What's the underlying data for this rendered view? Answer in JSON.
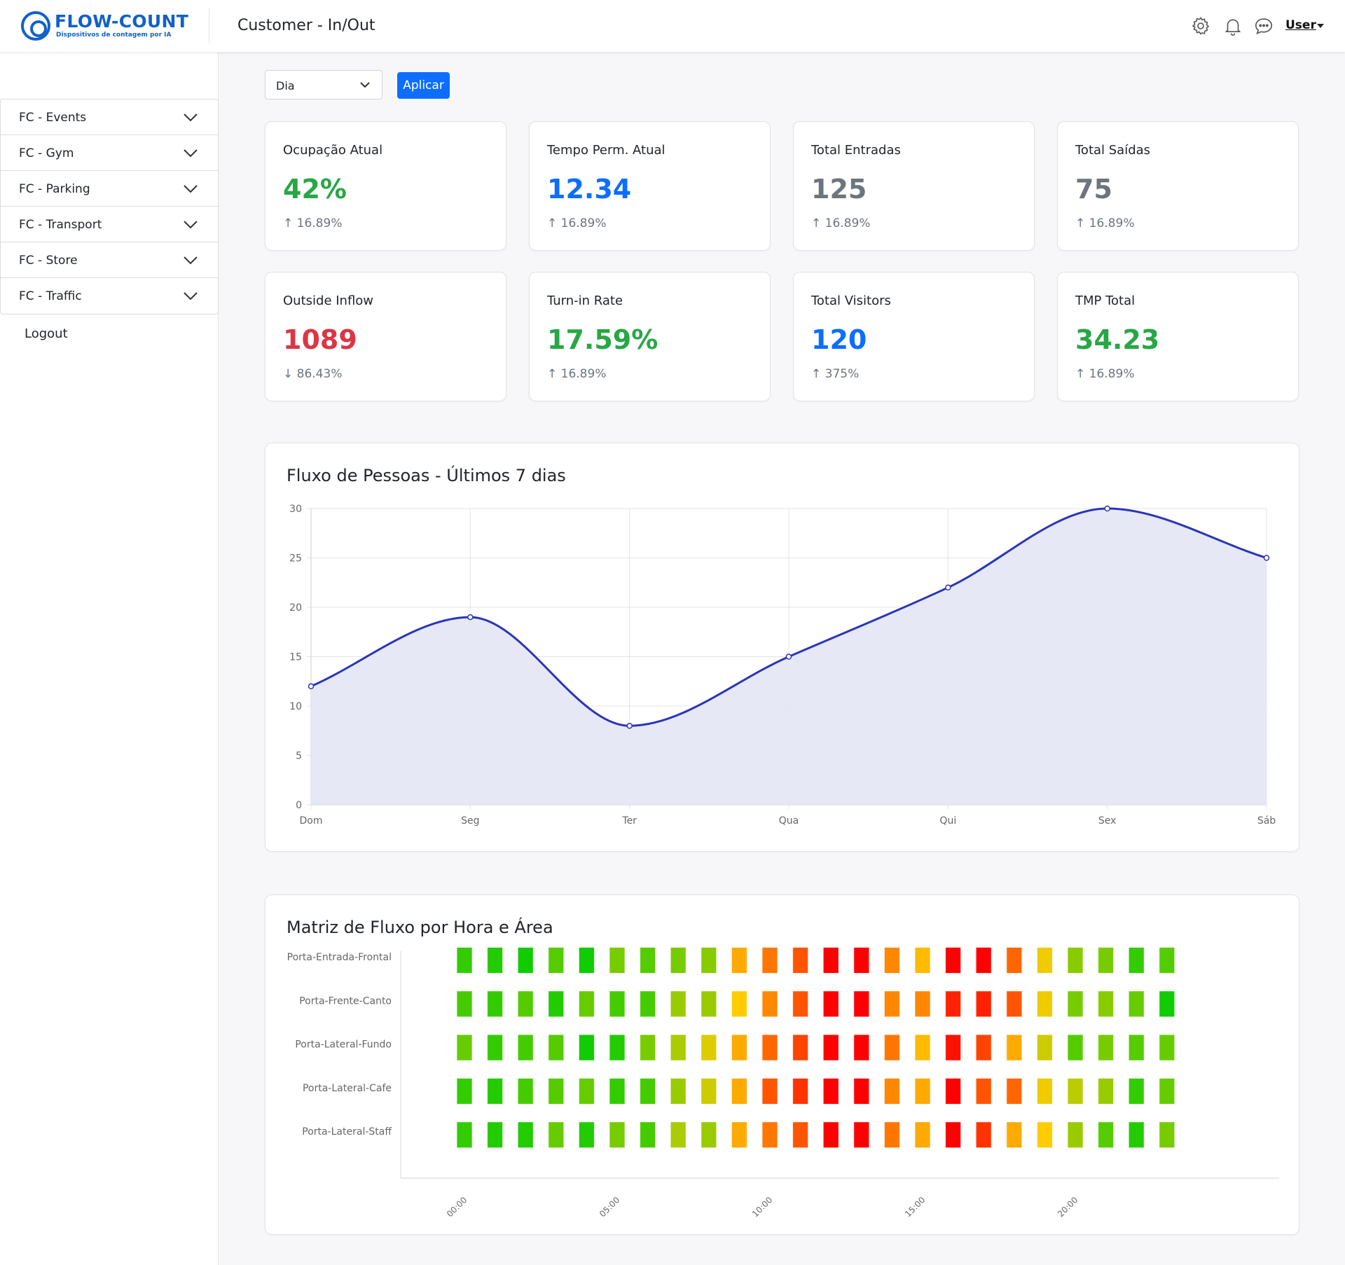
{
  "header": {
    "logo_name": "FLOW-COUNT",
    "logo_tagline": "Dispositivos de contagem por IA",
    "title": "Customer - In/Out",
    "icons": [
      "gear-icon",
      "bell-icon",
      "chat-icon"
    ],
    "user_label": "User"
  },
  "sidebar": {
    "items": [
      {
        "label": "FC - Events"
      },
      {
        "label": "FC - Gym"
      },
      {
        "label": "FC - Parking"
      },
      {
        "label": "FC - Transport"
      },
      {
        "label": "FC - Store"
      },
      {
        "label": "FC - Traffic"
      }
    ],
    "logout_label": "Logout"
  },
  "filter": {
    "period_value": "Dia",
    "apply_label": "Aplicar"
  },
  "colors": {
    "green": "#28a745",
    "blue": "#0d6efd",
    "gray": "#6c757d",
    "red": "#dc3545",
    "line": "#2936b5",
    "fill": "#e3e5f4"
  },
  "kpis": [
    {
      "title": "Ocupação Atual",
      "value": "42%",
      "change": "↑ 16.89%",
      "color": "#28a745"
    },
    {
      "title": "Tempo Perm. Atual",
      "value": "12.34",
      "change": "↑ 16.89%",
      "color": "#0d6efd"
    },
    {
      "title": "Total Entradas",
      "value": "125",
      "change": "↑ 16.89%",
      "color": "#6c757d"
    },
    {
      "title": "Total Saídas",
      "value": "75",
      "change": "↑ 16.89%",
      "color": "#6c757d"
    },
    {
      "title": "Outside Inflow",
      "value": "1089",
      "change": "↓ 86.43%",
      "color": "#dc3545"
    },
    {
      "title": "Turn-in Rate",
      "value": "17.59%",
      "change": "↑ 16.89%",
      "color": "#28a745"
    },
    {
      "title": "Total Visitors",
      "value": "120",
      "change": "↑ 375%",
      "color": "#0d6efd"
    },
    {
      "title": "TMP Total",
      "value": "34.23",
      "change": "↑ 16.89%",
      "color": "#28a745"
    }
  ],
  "chart_data": [
    {
      "type": "line",
      "title": "Fluxo de Pessoas - Últimos 7 dias",
      "categories": [
        "Dom",
        "Seg",
        "Ter",
        "Qua",
        "Qui",
        "Sex",
        "Sáb"
      ],
      "series": [
        {
          "values": [
            12,
            19,
            8,
            15,
            22,
            30,
            25
          ]
        }
      ],
      "ylim": [
        0,
        30
      ],
      "yticks": [
        0,
        5,
        10,
        15,
        20,
        25,
        30
      ],
      "area_fill": true,
      "grid": true
    },
    {
      "type": "heatmap",
      "title": "Matriz de Fluxo por Hora e Área",
      "rows": [
        "Porta-Entrada-Frontal",
        "Porta-Frente-Canto",
        "Porta-Lateral-Fundo",
        "Porta-Lateral-Cafe",
        "Porta-Lateral-Staff"
      ],
      "xticks": [
        "00:00",
        "05:00",
        "10:00",
        "15:00",
        "20:00"
      ],
      "columns": 24,
      "colors": [
        [
          "#33cc00",
          "#22cc00",
          "#11cc00",
          "#55cc00",
          "#11cc00",
          "#77cc00",
          "#55cc00",
          "#77cc00",
          "#88cc00",
          "#ffaa00",
          "#ff7700",
          "#ff5500",
          "#ff0000",
          "#ff0000",
          "#ff8800",
          "#ffbb00",
          "#ff0000",
          "#ff0000",
          "#ff6600",
          "#eecc00",
          "#88cc00",
          "#77cc00",
          "#33cc00",
          "#55cc00"
        ],
        [
          "#44cc00",
          "#33cc00",
          "#55cc00",
          "#22cc00",
          "#66cc00",
          "#44cc00",
          "#44cc00",
          "#99cc00",
          "#99cc00",
          "#ffcc00",
          "#ff8800",
          "#ff5500",
          "#ff0000",
          "#ff0000",
          "#ff8800",
          "#ff8800",
          "#ff2200",
          "#ff2200",
          "#ff5500",
          "#eecc00",
          "#77cc00",
          "#88cc00",
          "#66cc00",
          "#11cc00"
        ],
        [
          "#66cc00",
          "#33cc00",
          "#44cc00",
          "#55cc00",
          "#11cc00",
          "#22cc00",
          "#77cc00",
          "#aacc00",
          "#ddcc00",
          "#ffaa00",
          "#ff6600",
          "#ff4400",
          "#ff0000",
          "#ff0000",
          "#ff7700",
          "#ffbb00",
          "#ff1100",
          "#ff4400",
          "#ffaa00",
          "#cccc00",
          "#55cc00",
          "#77cc00",
          "#55cc00",
          "#66cc00"
        ],
        [
          "#33cc00",
          "#22cc00",
          "#44cc00",
          "#55cc00",
          "#66cc00",
          "#33cc00",
          "#44cc00",
          "#99cc00",
          "#cccc00",
          "#ffaa00",
          "#ff5500",
          "#ff3300",
          "#ff0000",
          "#ff0000",
          "#ff8800",
          "#ffaa00",
          "#ff0000",
          "#ff5500",
          "#ff6600",
          "#eecc00",
          "#bbcc00",
          "#99cc00",
          "#33cc00",
          "#66cc00"
        ],
        [
          "#33cc00",
          "#22cc00",
          "#22cc00",
          "#66cc00",
          "#22cc00",
          "#77cc00",
          "#44cc00",
          "#aacc00",
          "#99cc00",
          "#ffaa00",
          "#ff7700",
          "#ff5500",
          "#ff0000",
          "#ff0000",
          "#ff7700",
          "#ffaa00",
          "#ff0000",
          "#ff3300",
          "#ffaa00",
          "#ffcc00",
          "#99cc00",
          "#55cc00",
          "#22cc00",
          "#77cc00"
        ]
      ]
    }
  ]
}
